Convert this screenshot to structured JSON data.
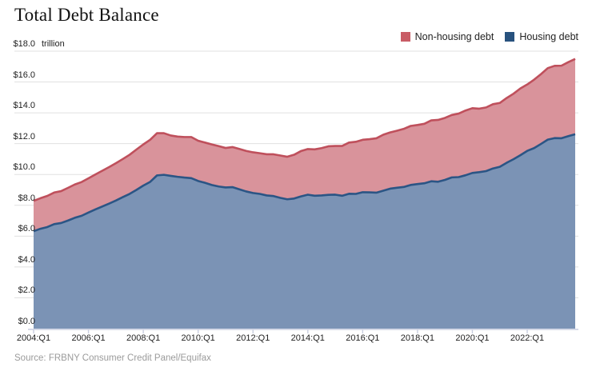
{
  "header": {
    "title": "Total Debt Balance"
  },
  "legend": {
    "items": [
      {
        "label": "Non-housing debt",
        "color": "#c95d66"
      },
      {
        "label": "Housing debt",
        "color": "#28527e"
      }
    ]
  },
  "source": {
    "text": "Source: FRBNY Consumer Credit Panel/Equifax"
  },
  "chart_data": {
    "type": "area",
    "stacked": true,
    "title": "Total Debt Balance",
    "unit_label": "trillion",
    "ylim": [
      0,
      18
    ],
    "grid": true,
    "legend_position": "top-right",
    "y_ticks": [
      {
        "value": 18,
        "label": "$18.0"
      },
      {
        "value": 16,
        "label": "$16.0"
      },
      {
        "value": 14,
        "label": "$14.0"
      },
      {
        "value": 12,
        "label": "$12.0"
      },
      {
        "value": 10,
        "label": "$10.0"
      },
      {
        "value": 8,
        "label": "$8.0"
      },
      {
        "value": 6,
        "label": "$6.0"
      },
      {
        "value": 4,
        "label": "$4.0"
      },
      {
        "value": 2,
        "label": "$2.0"
      },
      {
        "value": 0,
        "label": "$0.0"
      }
    ],
    "x_ticks": [
      {
        "index": 0,
        "label": "2004:Q1"
      },
      {
        "index": 8,
        "label": "2006:Q1"
      },
      {
        "index": 16,
        "label": "2008:Q1"
      },
      {
        "index": 24,
        "label": "2010:Q1"
      },
      {
        "index": 32,
        "label": "2012:Q1"
      },
      {
        "index": 40,
        "label": "2014:Q1"
      },
      {
        "index": 48,
        "label": "2016:Q1"
      },
      {
        "index": 56,
        "label": "2018:Q1"
      },
      {
        "index": 64,
        "label": "2020:Q1"
      },
      {
        "index": 72,
        "label": "2022:Q1"
      }
    ],
    "x_range": "2004:Q1 to 2023:Q4 quarterly",
    "series": [
      {
        "name": "Housing debt",
        "fill": "#7b93b5",
        "line": "#2b5585",
        "values": [
          6.32,
          6.48,
          6.59,
          6.78,
          6.85,
          7.01,
          7.19,
          7.32,
          7.53,
          7.73,
          7.92,
          8.11,
          8.31,
          8.53,
          8.74,
          9.0,
          9.28,
          9.52,
          9.94,
          9.98,
          9.91,
          9.85,
          9.8,
          9.76,
          9.58,
          9.46,
          9.32,
          9.22,
          9.16,
          9.18,
          9.04,
          8.9,
          8.8,
          8.74,
          8.64,
          8.6,
          8.48,
          8.39,
          8.44,
          8.58,
          8.69,
          8.62,
          8.64,
          8.68,
          8.69,
          8.62,
          8.75,
          8.74,
          8.85,
          8.84,
          8.82,
          8.95,
          9.08,
          9.14,
          9.19,
          9.32,
          9.38,
          9.43,
          9.56,
          9.53,
          9.65,
          9.81,
          9.83,
          9.95,
          10.1,
          10.15,
          10.22,
          10.39,
          10.5,
          10.76,
          10.99,
          11.25,
          11.53,
          11.71,
          11.98,
          12.26,
          12.36,
          12.35,
          12.49,
          12.61
        ]
      },
      {
        "name": "Non-housing debt",
        "fill": "#d9939b",
        "line": "#bf505c",
        "values": [
          1.97,
          1.98,
          2.02,
          2.05,
          2.07,
          2.12,
          2.16,
          2.19,
          2.22,
          2.27,
          2.32,
          2.37,
          2.42,
          2.47,
          2.54,
          2.62,
          2.67,
          2.73,
          2.74,
          2.7,
          2.62,
          2.61,
          2.63,
          2.67,
          2.61,
          2.61,
          2.63,
          2.62,
          2.56,
          2.6,
          2.62,
          2.63,
          2.64,
          2.64,
          2.67,
          2.71,
          2.75,
          2.76,
          2.84,
          2.94,
          2.96,
          3.01,
          3.07,
          3.15,
          3.16,
          3.23,
          3.32,
          3.38,
          3.4,
          3.45,
          3.53,
          3.63,
          3.65,
          3.7,
          3.77,
          3.83,
          3.83,
          3.86,
          3.95,
          4.01,
          4.02,
          4.05,
          4.12,
          4.2,
          4.2,
          4.12,
          4.13,
          4.17,
          4.14,
          4.2,
          4.25,
          4.33,
          4.31,
          4.44,
          4.53,
          4.64,
          4.69,
          4.71,
          4.8,
          4.89
        ]
      }
    ],
    "axis_color": "#c9cee0",
    "grid_color": "#e0e0e0"
  }
}
